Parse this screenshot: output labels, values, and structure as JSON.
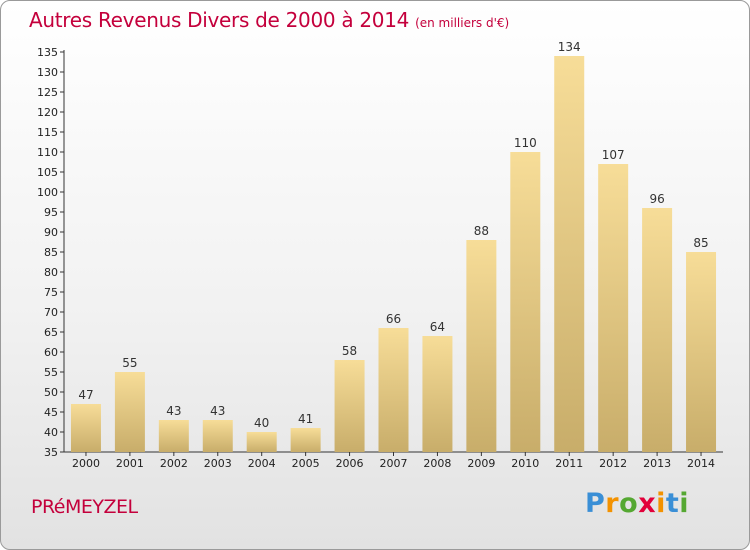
{
  "title": "Autres Revenus Divers de 2000 à 2014",
  "unit_note": "(en milliers d'€)",
  "commune": "PRéMEYZEL",
  "logo": {
    "letters": [
      "P",
      "r",
      "o",
      "x",
      "i",
      "t",
      "i"
    ],
    "colors": [
      "#3a8fd6",
      "#f39200",
      "#55a832",
      "#e2003a",
      "#f39200",
      "#3a8fd6",
      "#55a832"
    ]
  },
  "colors": {
    "title": "#c4003c",
    "bar_top": "#f7dd98",
    "bar_bottom": "#c8ad6a"
  },
  "chart_data": {
    "type": "bar",
    "categories": [
      "2000",
      "2001",
      "2002",
      "2003",
      "2004",
      "2005",
      "2006",
      "2007",
      "2008",
      "2009",
      "2010",
      "2011",
      "2012",
      "2013",
      "2014"
    ],
    "values": [
      47,
      55,
      43,
      43,
      40,
      41,
      58,
      66,
      64,
      88,
      110,
      134,
      107,
      96,
      85
    ],
    "ylim": [
      35,
      135
    ],
    "yticks": [
      35,
      40,
      45,
      50,
      55,
      60,
      65,
      70,
      75,
      80,
      85,
      90,
      95,
      100,
      105,
      110,
      115,
      120,
      125,
      130,
      135
    ],
    "grid": false
  }
}
